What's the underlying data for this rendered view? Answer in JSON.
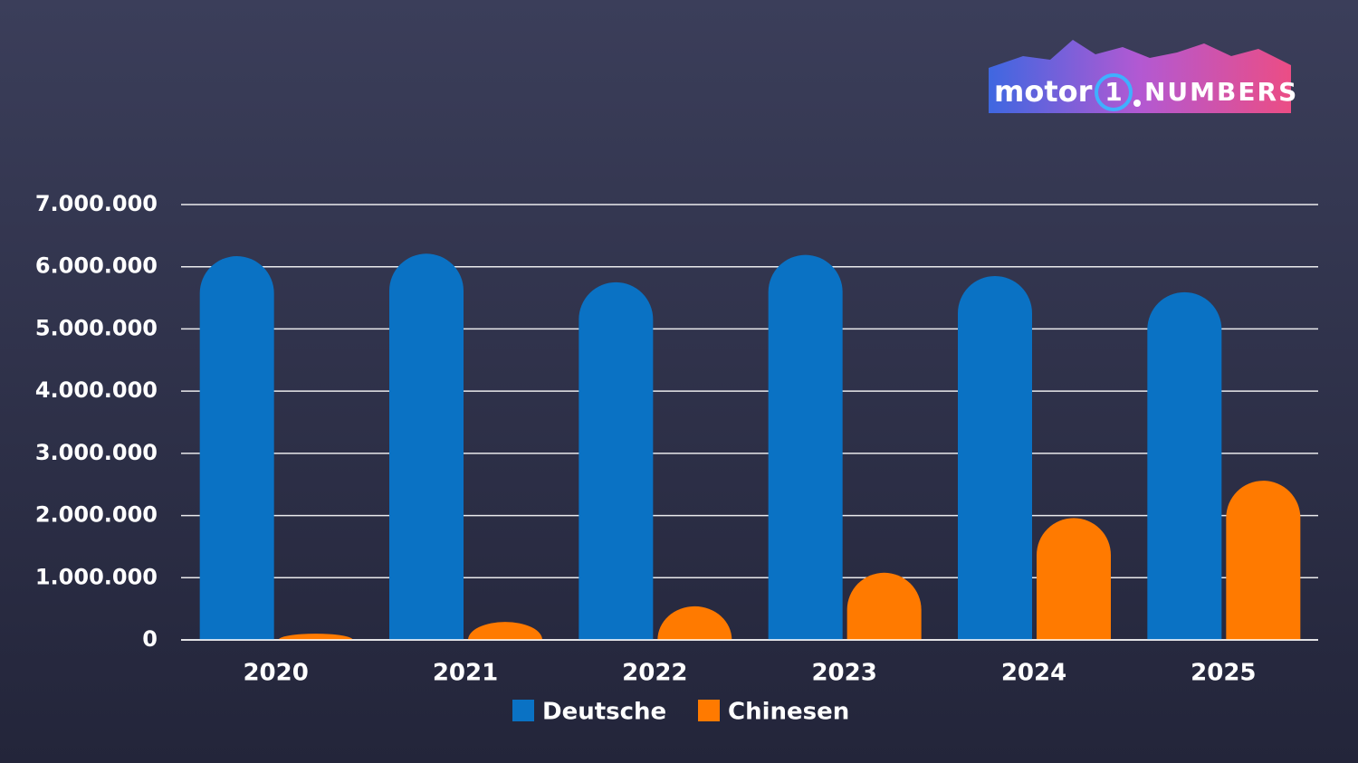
{
  "logo": {
    "brand": "motor",
    "number": "1",
    "suffix": "NUMBERS"
  },
  "chart_data": {
    "type": "bar",
    "categories": [
      "2020",
      "2021",
      "2022",
      "2023",
      "2024",
      "2025"
    ],
    "series": [
      {
        "name": "Deutsche",
        "color": "#0a72c4",
        "values": [
          6170000,
          6210000,
          5750000,
          6190000,
          5850000,
          5590000
        ]
      },
      {
        "name": "Chinesen",
        "color": "#ff7a00",
        "values": [
          100000,
          290000,
          540000,
          1080000,
          1960000,
          2560000
        ]
      }
    ],
    "ylim": [
      0,
      7000000
    ],
    "yticks": [
      0,
      {
        "value": 1000000,
        "label": "1.000.000"
      },
      {
        "value": 2000000,
        "label": "2.000.000"
      },
      {
        "value": 3000000,
        "label": "3.000.000"
      },
      {
        "value": 4000000,
        "label": "4.000.000"
      },
      {
        "value": 5000000,
        "label": "5.000.000"
      },
      {
        "value": 6000000,
        "label": "6.000.000"
      },
      {
        "value": 7000000,
        "label": "7.000.000"
      }
    ],
    "grid": true,
    "legend": "bottom"
  }
}
